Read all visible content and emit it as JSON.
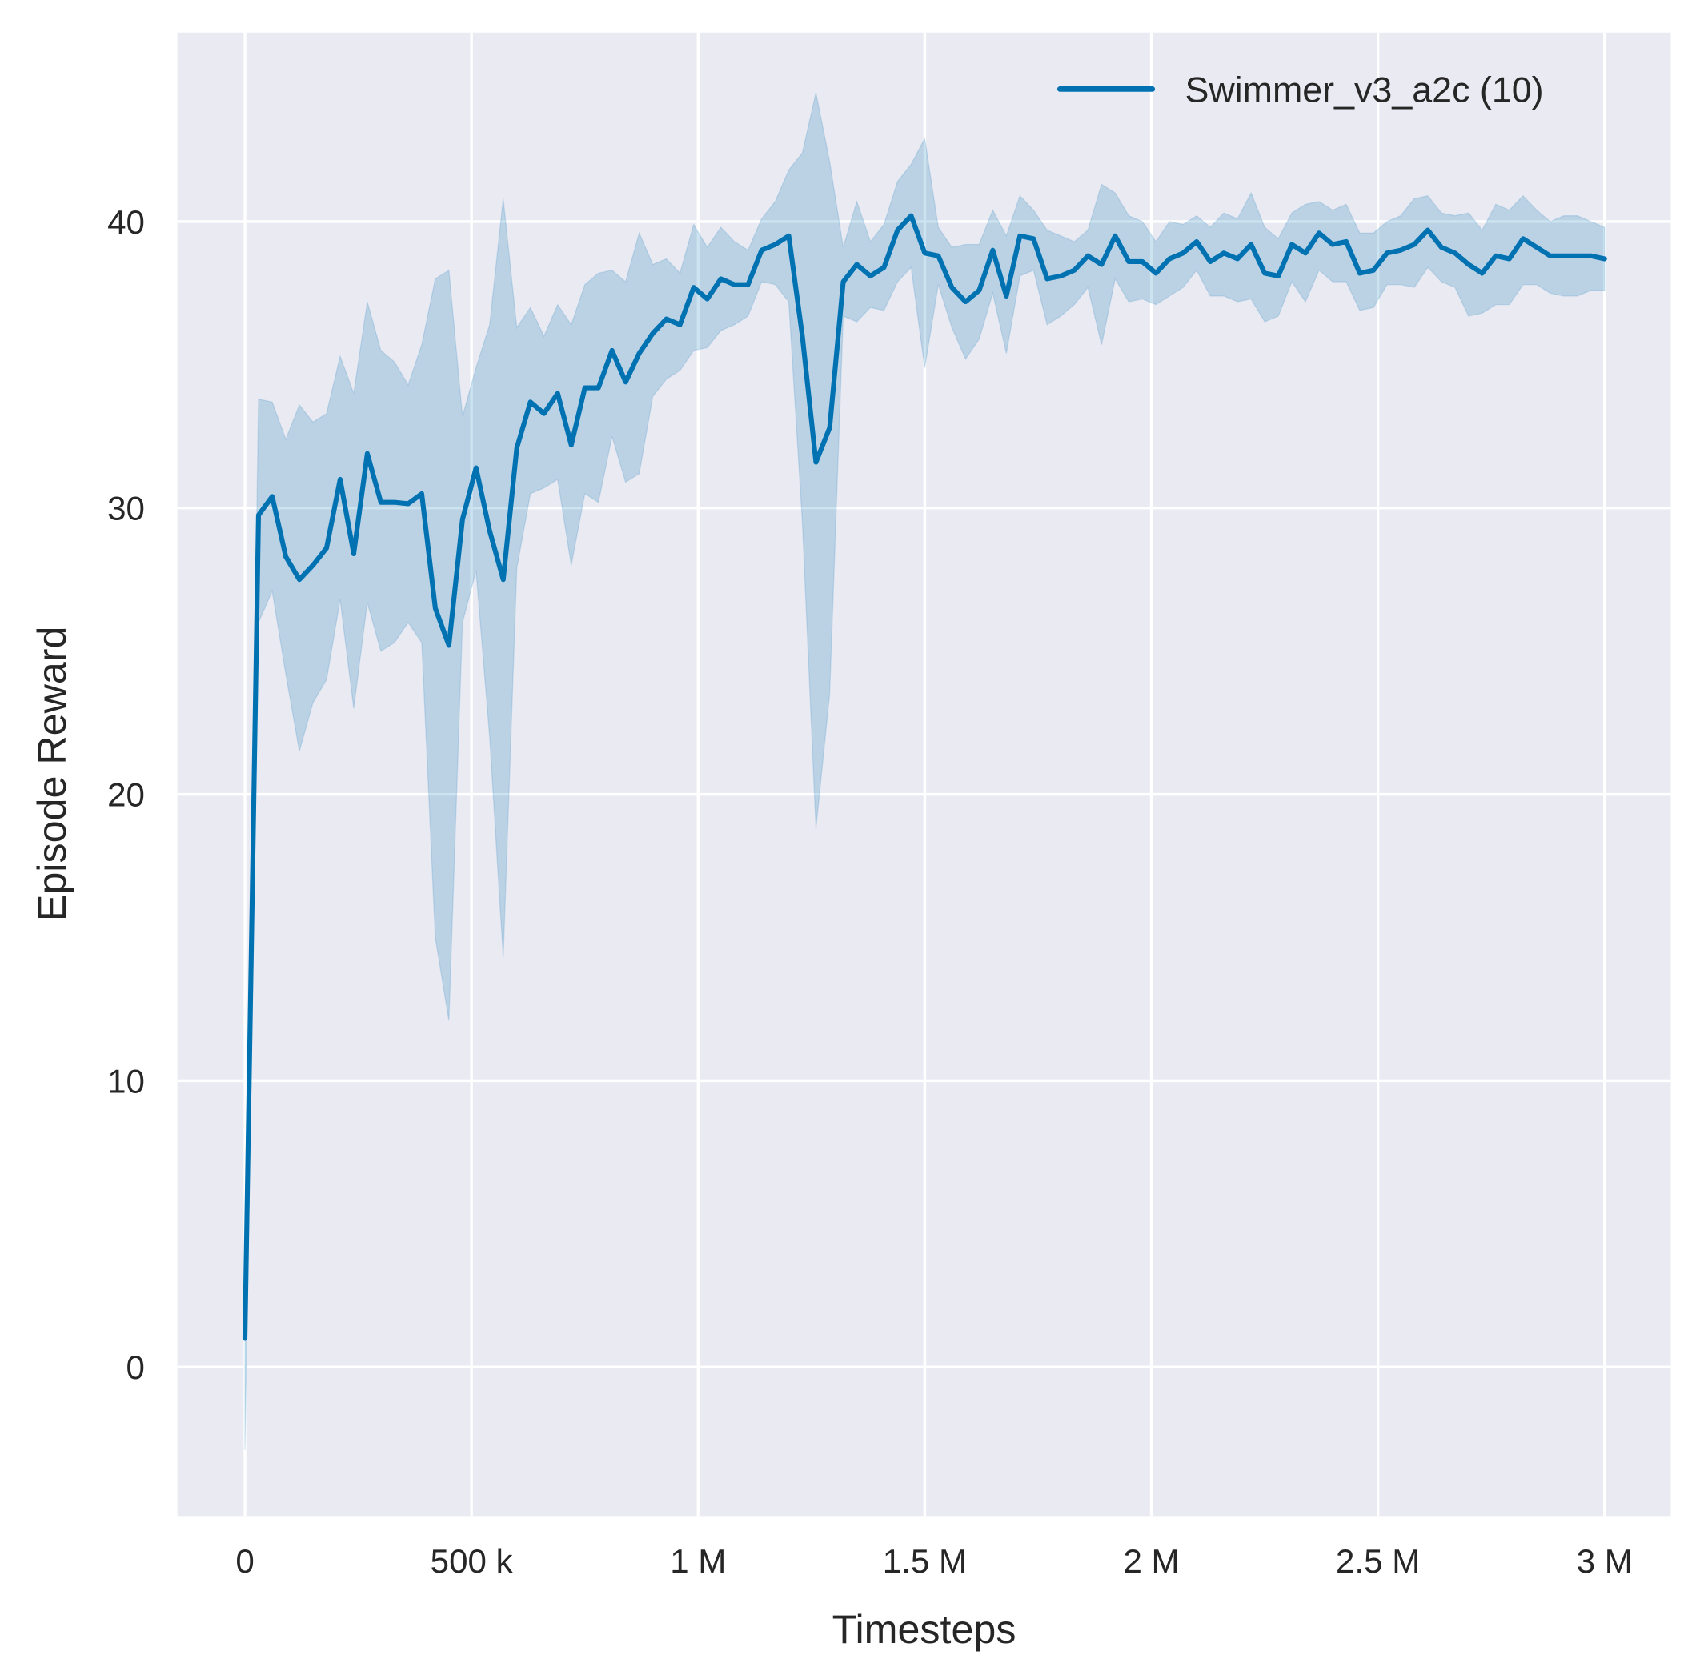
{
  "chart_data": {
    "type": "line",
    "title": "",
    "xlabel": "Timesteps",
    "ylabel": "Episode Reward",
    "xlim": [
      -149000,
      3146000
    ],
    "ylim": [
      -5.2,
      46.6
    ],
    "grid": true,
    "legend_placement": "top-right",
    "background_color": "#EAEAF2",
    "x_ticks": [
      0,
      500000,
      1000000,
      1500000,
      2000000,
      2500000,
      3000000
    ],
    "x_tick_labels": [
      "0",
      "500 k",
      "1 M",
      "1.5 M",
      "2 M",
      "2.5 M",
      "3 M"
    ],
    "y_ticks": [
      0,
      10,
      20,
      30,
      40
    ],
    "y_tick_labels": [
      "0",
      "10",
      "20",
      "30",
      "40"
    ],
    "series": [
      {
        "name": "Swimmer_v3_a2c (10)",
        "color": "#0072B2",
        "x": [
          0,
          30000,
          60000,
          90000,
          120000,
          150000,
          180000,
          210000,
          240000,
          270000,
          300000,
          330000,
          360000,
          390000,
          420000,
          450000,
          480000,
          510000,
          540000,
          570000,
          600000,
          630000,
          660000,
          690000,
          720000,
          750000,
          780000,
          810000,
          840000,
          870000,
          900000,
          930000,
          960000,
          990000,
          1020000,
          1050000,
          1080000,
          1110000,
          1140000,
          1170000,
          1200000,
          1230000,
          1260000,
          1290000,
          1320000,
          1350000,
          1380000,
          1410000,
          1440000,
          1470000,
          1500000,
          1530000,
          1560000,
          1590000,
          1620000,
          1650000,
          1680000,
          1710000,
          1740000,
          1770000,
          1800000,
          1830000,
          1860000,
          1890000,
          1920000,
          1950000,
          1980000,
          2010000,
          2040000,
          2070000,
          2100000,
          2130000,
          2160000,
          2190000,
          2220000,
          2250000,
          2280000,
          2310000,
          2340000,
          2370000,
          2400000,
          2430000,
          2460000,
          2490000,
          2520000,
          2550000,
          2580000,
          2610000,
          2640000,
          2670000,
          2700000,
          2730000,
          2760000,
          2790000,
          2820000,
          2850000,
          2880000,
          2910000,
          2940000,
          2970000,
          3000000
        ],
        "mean": [
          1.0,
          29.75,
          30.4,
          28.3,
          27.5,
          28.0,
          28.6,
          31.0,
          28.4,
          31.9,
          30.2,
          30.2,
          30.15,
          30.5,
          26.5,
          25.2,
          29.6,
          31.4,
          29.2,
          27.5,
          32.1,
          33.7,
          33.3,
          34.0,
          32.2,
          34.2,
          34.2,
          35.5,
          34.4,
          35.4,
          36.1,
          36.6,
          36.4,
          37.7,
          37.3,
          38.0,
          37.8,
          37.8,
          39.0,
          39.2,
          39.5,
          36.0,
          31.6,
          32.8,
          37.9,
          38.5,
          38.1,
          38.4,
          39.7,
          40.2,
          38.9,
          38.8,
          37.7,
          37.2,
          37.6,
          39.0,
          37.4,
          39.5,
          39.4,
          38.0,
          38.1,
          38.3,
          38.8,
          38.5,
          39.5,
          38.6,
          38.6,
          38.2,
          38.7,
          38.9,
          39.3,
          38.6,
          38.9,
          38.7,
          39.2,
          38.2,
          38.1,
          39.2,
          38.9,
          39.6,
          39.2,
          39.3,
          38.2,
          38.3,
          38.9,
          39.0,
          39.2,
          39.7,
          39.1,
          38.9,
          38.5,
          38.2,
          38.8,
          38.7,
          39.4,
          39.1,
          38.8,
          38.8,
          38.8,
          38.8,
          38.7
        ],
        "upper": [
          1.5,
          33.8,
          33.7,
          32.4,
          33.6,
          33.0,
          33.3,
          35.3,
          34.0,
          37.2,
          35.5,
          35.1,
          34.3,
          35.7,
          38.0,
          38.3,
          33.2,
          34.9,
          36.4,
          40.8,
          36.3,
          37.0,
          36.0,
          37.1,
          36.4,
          37.8,
          38.2,
          38.3,
          37.9,
          39.6,
          38.5,
          38.7,
          38.2,
          39.9,
          39.1,
          39.8,
          39.3,
          39.0,
          40.1,
          40.7,
          41.8,
          42.4,
          44.5,
          42.1,
          39.1,
          40.7,
          39.3,
          39.9,
          41.4,
          42.0,
          42.9,
          39.8,
          39.1,
          39.2,
          39.2,
          40.4,
          39.5,
          40.9,
          40.4,
          39.7,
          39.5,
          39.3,
          39.7,
          41.3,
          41.0,
          40.2,
          40.0,
          39.3,
          40.0,
          39.9,
          40.2,
          39.8,
          40.3,
          40.1,
          41.0,
          39.8,
          39.4,
          40.3,
          40.6,
          40.7,
          40.4,
          40.6,
          39.6,
          39.6,
          40.0,
          40.2,
          40.8,
          40.9,
          40.3,
          40.2,
          40.3,
          39.7,
          40.6,
          40.4,
          40.9,
          40.4,
          40.0,
          40.2,
          40.2,
          40.0,
          39.8
        ],
        "lower": [
          -2.9,
          26.0,
          27.1,
          24.2,
          21.5,
          23.2,
          24.0,
          26.8,
          23.0,
          26.7,
          25.0,
          25.3,
          26.0,
          25.3,
          15.0,
          12.1,
          26.0,
          27.8,
          22.0,
          14.3,
          27.9,
          30.5,
          30.7,
          31.0,
          28.0,
          30.5,
          30.2,
          32.5,
          30.9,
          31.2,
          33.9,
          34.5,
          34.8,
          35.5,
          35.6,
          36.2,
          36.4,
          36.7,
          37.9,
          37.8,
          37.2,
          29.5,
          18.8,
          23.5,
          36.7,
          36.5,
          37.0,
          36.9,
          37.9,
          38.4,
          34.9,
          37.8,
          36.3,
          35.2,
          35.9,
          37.5,
          35.4,
          38.1,
          38.3,
          36.4,
          36.7,
          37.1,
          37.7,
          35.7,
          38.0,
          37.2,
          37.3,
          37.1,
          37.4,
          37.7,
          38.3,
          37.4,
          37.4,
          37.2,
          37.3,
          36.5,
          36.7,
          37.9,
          37.2,
          38.3,
          37.9,
          37.9,
          36.9,
          37.0,
          37.8,
          37.8,
          37.7,
          38.4,
          37.9,
          37.7,
          36.7,
          36.8,
          37.1,
          37.1,
          37.8,
          37.8,
          37.5,
          37.4,
          37.4,
          37.6,
          37.6
        ]
      }
    ]
  }
}
